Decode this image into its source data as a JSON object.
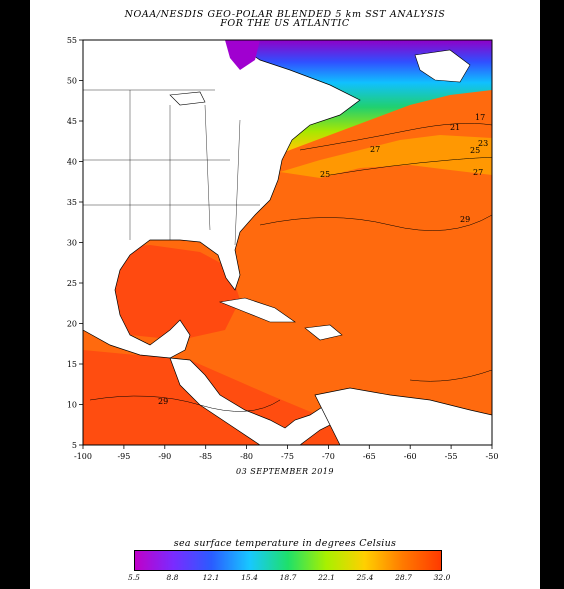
{
  "title_line1": "NOAA/NESDIS GEO-POLAR BLENDED 5 km SST ANALYSIS",
  "title_line2": "FOR THE US ATLANTIC",
  "date": "03 SEPTEMBER 2019",
  "legend_title": "sea surface temperature in degrees Celsius",
  "lon_ticks": [
    "-100",
    "-95",
    "-90",
    "-85",
    "-80",
    "-75",
    "-70",
    "-65",
    "-60",
    "-55",
    "-50"
  ],
  "lat_ticks": [
    "55",
    "50",
    "45",
    "40",
    "35",
    "30",
    "25",
    "20",
    "15",
    "10",
    "5"
  ],
  "contour_labels": [
    "17",
    "21",
    "23",
    "25",
    "25",
    "27",
    "27",
    "29",
    "29"
  ],
  "colorbar_ticks": [
    "5.5",
    "8.8",
    "12.1",
    "15.4",
    "18.7",
    "22.1",
    "25.4",
    "28.7",
    "32.0"
  ],
  "colorbar_colors": [
    "#c000c8",
    "#7a2bff",
    "#2a5cff",
    "#18c8ff",
    "#1ee06a",
    "#a8f000",
    "#ffd000",
    "#ff7a00",
    "#ff3a00"
  ],
  "colors": {
    "warm_ocean": "#ff6a0e",
    "hot_ocean": "#ff4a10",
    "land": "#ffffff",
    "background": "#000000"
  }
}
